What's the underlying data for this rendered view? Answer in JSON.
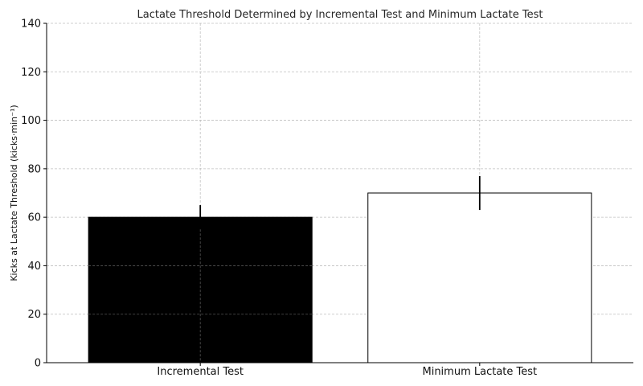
{
  "chart_data": {
    "type": "bar",
    "title": "Lactate Threshold Determined by Incremental Test and Minimum Lactate Test",
    "xlabel": "",
    "ylabel": "Kicks at Lactate Threshold (kicks·min⁻¹)",
    "categories": [
      "Incremental Test",
      "Minimum Lactate Test"
    ],
    "values": [
      60,
      70
    ],
    "errors": [
      5,
      7
    ],
    "bar_colors": [
      "#000000",
      "#ffffff"
    ],
    "bar_edge_color": "#000000",
    "ylim": [
      0,
      140
    ],
    "yticks": [
      0,
      20,
      40,
      60,
      80,
      100,
      120,
      140
    ],
    "grid": true
  }
}
